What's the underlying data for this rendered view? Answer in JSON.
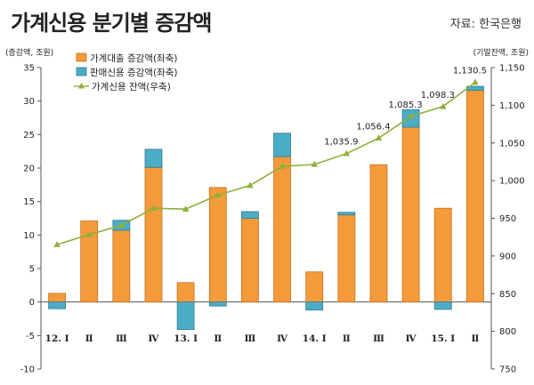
{
  "header": {
    "title": "가계신용 분기별 증감액",
    "source": "자료: 한국은행"
  },
  "colors": {
    "loan": "#F59A3A",
    "loan_edge": "#C8701C",
    "sales": "#4BACC6",
    "sales_edge": "#2E7D96",
    "line": "#8DB03C"
  },
  "chart_data": {
    "type": "bar",
    "stacked": true,
    "categories": [
      "12. Ⅰ",
      "Ⅱ",
      "Ⅲ",
      "Ⅳ",
      "13. Ⅰ",
      "Ⅱ",
      "Ⅲ",
      "Ⅳ",
      "14. Ⅰ",
      "Ⅱ",
      "Ⅲ",
      "Ⅳ",
      "15. Ⅰ",
      "Ⅱ"
    ],
    "left_axis": {
      "label": "(증감액, 조원)",
      "ylim": [
        -10,
        35
      ],
      "ticks": [
        -10,
        -5,
        0,
        5,
        10,
        15,
        20,
        25,
        30,
        35
      ]
    },
    "right_axis": {
      "label": "(기말잔액, 조원)",
      "ylim": [
        750,
        1150
      ],
      "ticks": [
        750,
        800,
        850,
        900,
        950,
        1000,
        1050,
        1100,
        1150
      ],
      "tick_labels": [
        "750",
        "800",
        "850",
        "900",
        "950",
        "1,000",
        "1,050",
        "1,100",
        "1,150"
      ]
    },
    "series": [
      {
        "name": "가계대출 증감액(좌축)",
        "kind": "bar",
        "axis": "left",
        "values": [
          1.3,
          12.1,
          10.7,
          20.1,
          2.9,
          17.1,
          12.5,
          21.7,
          4.5,
          13.0,
          20.5,
          26.1,
          14.0,
          31.6
        ]
      },
      {
        "name": "판매신용 증감액(좌축)",
        "kind": "bar",
        "axis": "left",
        "values": [
          -1.0,
          0.0,
          1.5,
          2.7,
          -4.1,
          -0.6,
          1.0,
          3.5,
          -1.2,
          0.4,
          0.0,
          2.6,
          -1.1,
          0.6
        ]
      },
      {
        "name": "가계신용 잔액(우축)",
        "kind": "line",
        "axis": "right",
        "values": [
          915.1,
          928.4,
          940.6,
          963.4,
          962.2,
          980.7,
          993.6,
          1019.0,
          1021.4,
          1035.9,
          1056.4,
          1085.3,
          1098.3,
          1130.5
        ]
      }
    ],
    "data_labels": [
      {
        "index": 9,
        "text": "1,035.9"
      },
      {
        "index": 10,
        "text": "1,056.4"
      },
      {
        "index": 11,
        "text": "1,085.3"
      },
      {
        "index": 12,
        "text": "1,098.3"
      },
      {
        "index": 13,
        "text": "1,130.5"
      }
    ],
    "legend_position": "top-left"
  }
}
